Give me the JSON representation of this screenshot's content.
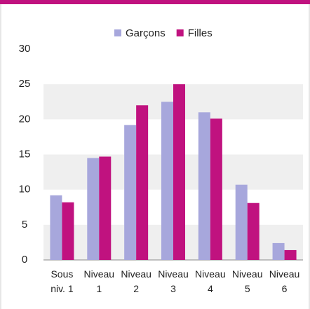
{
  "chart_data": {
    "type": "bar",
    "categories": [
      "Sous niv. 1",
      "Niveau 1",
      "Niveau 2",
      "Niveau 3",
      "Niveau 4",
      "Niveau 5",
      "Niveau 6"
    ],
    "series": [
      {
        "name": "Garçons",
        "color": "#a7a7dc",
        "values": [
          9.2,
          14.5,
          19.2,
          22.5,
          21,
          10.7,
          2.4
        ]
      },
      {
        "name": "Filles",
        "color": "#c0127f",
        "values": [
          8.2,
          14.7,
          22,
          25,
          20.1,
          8.1,
          1.4
        ]
      }
    ],
    "ylim": [
      0,
      30
    ],
    "yticks": [
      0,
      5,
      10,
      15,
      20,
      25,
      30
    ],
    "grid": true,
    "legend": "top"
  }
}
